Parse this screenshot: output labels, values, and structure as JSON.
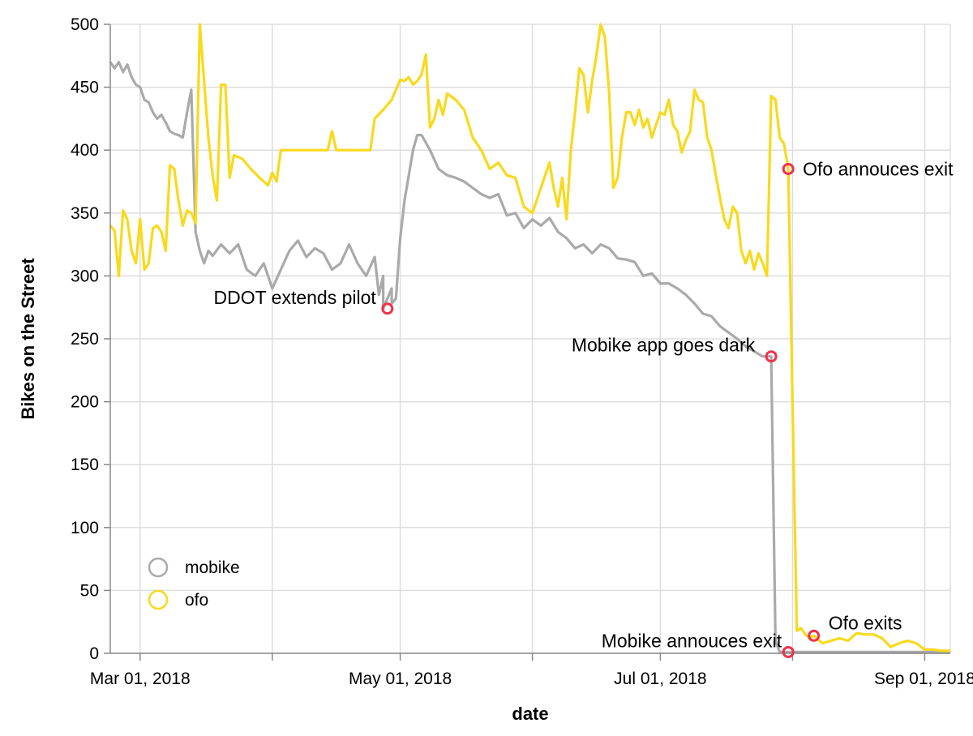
{
  "chart_data": {
    "type": "line",
    "xlabel": "date",
    "ylabel": "Bikes on the Street",
    "xlim": [
      "2018-02-22",
      "2018-09-07"
    ],
    "ylim": [
      0,
      500
    ],
    "yticks": [
      0,
      50,
      100,
      150,
      200,
      250,
      300,
      350,
      400,
      450,
      500
    ],
    "xticks": [
      {
        "date": "2018-03-01",
        "label": "Mar 01, 2018"
      },
      {
        "date": "2018-05-01",
        "label": "May 01, 2018"
      },
      {
        "date": "2018-07-01",
        "label": "Jul 01, 2018"
      },
      {
        "date": "2018-09-01",
        "label": "Sep 01, 2018"
      }
    ],
    "minor_xticks": [
      "2018-04-01",
      "2018-06-01",
      "2018-08-01"
    ],
    "grid": true,
    "legend_position": "bottom-left",
    "series": [
      {
        "name": "mobike",
        "color": "#aaaaaa",
        "points": [
          [
            "2018-02-22",
            470
          ],
          [
            "2018-02-23",
            465
          ],
          [
            "2018-02-24",
            470
          ],
          [
            "2018-02-25",
            462
          ],
          [
            "2018-02-26",
            468
          ],
          [
            "2018-02-27",
            458
          ],
          [
            "2018-02-28",
            452
          ],
          [
            "2018-03-01",
            450
          ],
          [
            "2018-03-02",
            440
          ],
          [
            "2018-03-03",
            438
          ],
          [
            "2018-03-04",
            430
          ],
          [
            "2018-03-05",
            425
          ],
          [
            "2018-03-06",
            428
          ],
          [
            "2018-03-07",
            422
          ],
          [
            "2018-03-08",
            415
          ],
          [
            "2018-03-09",
            413
          ],
          [
            "2018-03-10",
            412
          ],
          [
            "2018-03-11",
            410
          ],
          [
            "2018-03-12",
            430
          ],
          [
            "2018-03-13",
            448
          ],
          [
            "2018-03-14",
            335
          ],
          [
            "2018-03-15",
            320
          ],
          [
            "2018-03-16",
            310
          ],
          [
            "2018-03-17",
            320
          ],
          [
            "2018-03-18",
            316
          ],
          [
            "2018-03-20",
            325
          ],
          [
            "2018-03-22",
            318
          ],
          [
            "2018-03-24",
            325
          ],
          [
            "2018-03-26",
            305
          ],
          [
            "2018-03-28",
            300
          ],
          [
            "2018-03-30",
            310
          ],
          [
            "2018-04-01",
            290
          ],
          [
            "2018-04-03",
            305
          ],
          [
            "2018-04-05",
            320
          ],
          [
            "2018-04-07",
            328
          ],
          [
            "2018-04-09",
            315
          ],
          [
            "2018-04-11",
            322
          ],
          [
            "2018-04-13",
            318
          ],
          [
            "2018-04-15",
            305
          ],
          [
            "2018-04-17",
            310
          ],
          [
            "2018-04-19",
            325
          ],
          [
            "2018-04-21",
            310
          ],
          [
            "2018-04-23",
            300
          ],
          [
            "2018-04-25",
            315
          ],
          [
            "2018-04-27",
            300
          ],
          [
            "2018-04-29",
            290
          ],
          [
            "2018-04-26",
            285
          ],
          [
            "2018-04-27",
            274
          ],
          [
            "2018-04-29",
            278
          ],
          [
            "2018-04-30",
            282
          ],
          [
            "2018-05-01",
            330
          ],
          [
            "2018-05-02",
            360
          ],
          [
            "2018-05-04",
            400
          ],
          [
            "2018-05-05",
            412
          ],
          [
            "2018-05-06",
            412
          ],
          [
            "2018-05-08",
            400
          ],
          [
            "2018-05-10",
            385
          ],
          [
            "2018-05-12",
            380
          ],
          [
            "2018-05-14",
            378
          ],
          [
            "2018-05-16",
            375
          ],
          [
            "2018-05-18",
            370
          ],
          [
            "2018-05-20",
            365
          ],
          [
            "2018-05-22",
            362
          ],
          [
            "2018-05-24",
            365
          ],
          [
            "2018-05-26",
            348
          ],
          [
            "2018-05-28",
            350
          ],
          [
            "2018-05-30",
            338
          ],
          [
            "2018-06-01",
            345
          ],
          [
            "2018-06-03",
            340
          ],
          [
            "2018-06-05",
            346
          ],
          [
            "2018-06-07",
            335
          ],
          [
            "2018-06-09",
            330
          ],
          [
            "2018-06-11",
            322
          ],
          [
            "2018-06-13",
            325
          ],
          [
            "2018-06-15",
            318
          ],
          [
            "2018-06-17",
            325
          ],
          [
            "2018-06-19",
            322
          ],
          [
            "2018-06-21",
            314
          ],
          [
            "2018-06-23",
            313
          ],
          [
            "2018-06-25",
            311
          ],
          [
            "2018-06-27",
            300
          ],
          [
            "2018-06-29",
            302
          ],
          [
            "2018-07-01",
            294
          ],
          [
            "2018-07-03",
            294
          ],
          [
            "2018-07-05",
            290
          ],
          [
            "2018-07-07",
            285
          ],
          [
            "2018-07-09",
            278
          ],
          [
            "2018-07-11",
            270
          ],
          [
            "2018-07-13",
            268
          ],
          [
            "2018-07-15",
            260
          ],
          [
            "2018-07-17",
            255
          ],
          [
            "2018-07-19",
            250
          ],
          [
            "2018-07-21",
            244
          ],
          [
            "2018-07-23",
            240
          ],
          [
            "2018-07-25",
            236
          ],
          [
            "2018-07-27",
            236
          ],
          [
            "2018-07-28",
            10
          ],
          [
            "2018-07-29",
            1
          ],
          [
            "2018-09-07",
            1
          ]
        ]
      },
      {
        "name": "ofo",
        "color": "#f9d91c",
        "points": [
          [
            "2018-02-22",
            340
          ],
          [
            "2018-02-23",
            336
          ],
          [
            "2018-02-24",
            300
          ],
          [
            "2018-02-25",
            352
          ],
          [
            "2018-02-26",
            345
          ],
          [
            "2018-02-27",
            320
          ],
          [
            "2018-02-28",
            310
          ],
          [
            "2018-03-01",
            345
          ],
          [
            "2018-03-02",
            305
          ],
          [
            "2018-03-03",
            310
          ],
          [
            "2018-03-04",
            338
          ],
          [
            "2018-03-05",
            340
          ],
          [
            "2018-03-06",
            335
          ],
          [
            "2018-03-07",
            320
          ],
          [
            "2018-03-08",
            388
          ],
          [
            "2018-03-09",
            385
          ],
          [
            "2018-03-10",
            360
          ],
          [
            "2018-03-11",
            340
          ],
          [
            "2018-03-12",
            352
          ],
          [
            "2018-03-13",
            350
          ],
          [
            "2018-03-14",
            342
          ],
          [
            "2018-03-15",
            500
          ],
          [
            "2018-03-16",
            455
          ],
          [
            "2018-03-17",
            410
          ],
          [
            "2018-03-18",
            380
          ],
          [
            "2018-03-19",
            360
          ],
          [
            "2018-03-20",
            452
          ],
          [
            "2018-03-21",
            452
          ],
          [
            "2018-03-22",
            378
          ],
          [
            "2018-03-23",
            396
          ],
          [
            "2018-03-25",
            393
          ],
          [
            "2018-03-27",
            385
          ],
          [
            "2018-03-29",
            378
          ],
          [
            "2018-03-31",
            372
          ],
          [
            "2018-04-01",
            382
          ],
          [
            "2018-04-02",
            375
          ],
          [
            "2018-04-03",
            400
          ],
          [
            "2018-04-05",
            400
          ],
          [
            "2018-04-07",
            400
          ],
          [
            "2018-04-09",
            400
          ],
          [
            "2018-04-11",
            400
          ],
          [
            "2018-04-13",
            400
          ],
          [
            "2018-04-14",
            400
          ],
          [
            "2018-04-15",
            415
          ],
          [
            "2018-04-16",
            400
          ],
          [
            "2018-04-19",
            400
          ],
          [
            "2018-04-22",
            400
          ],
          [
            "2018-04-24",
            400
          ],
          [
            "2018-04-25",
            425
          ],
          [
            "2018-04-27",
            432
          ],
          [
            "2018-04-29",
            440
          ],
          [
            "2018-05-01",
            456
          ],
          [
            "2018-05-02",
            455
          ],
          [
            "2018-05-03",
            458
          ],
          [
            "2018-05-04",
            452
          ],
          [
            "2018-05-05",
            455
          ],
          [
            "2018-05-06",
            460
          ],
          [
            "2018-05-07",
            476
          ],
          [
            "2018-05-08",
            418
          ],
          [
            "2018-05-09",
            425
          ],
          [
            "2018-05-10",
            440
          ],
          [
            "2018-05-11",
            428
          ],
          [
            "2018-05-12",
            445
          ],
          [
            "2018-05-14",
            440
          ],
          [
            "2018-05-16",
            432
          ],
          [
            "2018-05-18",
            410
          ],
          [
            "2018-05-20",
            400
          ],
          [
            "2018-05-22",
            385
          ],
          [
            "2018-05-24",
            390
          ],
          [
            "2018-05-26",
            380
          ],
          [
            "2018-05-28",
            378
          ],
          [
            "2018-05-30",
            355
          ],
          [
            "2018-06-01",
            350
          ],
          [
            "2018-06-03",
            370
          ],
          [
            "2018-06-05",
            390
          ],
          [
            "2018-06-06",
            370
          ],
          [
            "2018-06-07",
            355
          ],
          [
            "2018-06-08",
            378
          ],
          [
            "2018-06-09",
            345
          ],
          [
            "2018-06-10",
            400
          ],
          [
            "2018-06-11",
            430
          ],
          [
            "2018-06-12",
            465
          ],
          [
            "2018-06-13",
            460
          ],
          [
            "2018-06-14",
            430
          ],
          [
            "2018-06-15",
            455
          ],
          [
            "2018-06-16",
            475
          ],
          [
            "2018-06-17",
            500
          ],
          [
            "2018-06-18",
            490
          ],
          [
            "2018-06-19",
            445
          ],
          [
            "2018-06-20",
            370
          ],
          [
            "2018-06-21",
            378
          ],
          [
            "2018-06-22",
            410
          ],
          [
            "2018-06-23",
            430
          ],
          [
            "2018-06-24",
            430
          ],
          [
            "2018-06-25",
            420
          ],
          [
            "2018-06-26",
            432
          ],
          [
            "2018-06-27",
            418
          ],
          [
            "2018-06-28",
            425
          ],
          [
            "2018-06-29",
            410
          ],
          [
            "2018-06-30",
            420
          ],
          [
            "2018-07-01",
            430
          ],
          [
            "2018-07-02",
            428
          ],
          [
            "2018-07-03",
            440
          ],
          [
            "2018-07-04",
            420
          ],
          [
            "2018-07-05",
            415
          ],
          [
            "2018-07-06",
            398
          ],
          [
            "2018-07-07",
            408
          ],
          [
            "2018-07-08",
            415
          ],
          [
            "2018-07-09",
            448
          ],
          [
            "2018-07-10",
            440
          ],
          [
            "2018-07-11",
            438
          ],
          [
            "2018-07-12",
            410
          ],
          [
            "2018-07-13",
            400
          ],
          [
            "2018-07-14",
            380
          ],
          [
            "2018-07-15",
            362
          ],
          [
            "2018-07-16",
            345
          ],
          [
            "2018-07-17",
            338
          ],
          [
            "2018-07-18",
            355
          ],
          [
            "2018-07-19",
            350
          ],
          [
            "2018-07-20",
            320
          ],
          [
            "2018-07-21",
            310
          ],
          [
            "2018-07-22",
            320
          ],
          [
            "2018-07-23",
            305
          ],
          [
            "2018-07-24",
            318
          ],
          [
            "2018-07-25",
            310
          ],
          [
            "2018-07-26",
            300
          ],
          [
            "2018-07-27",
            443
          ],
          [
            "2018-07-28",
            440
          ],
          [
            "2018-07-29",
            410
          ],
          [
            "2018-07-30",
            405
          ],
          [
            "2018-07-31",
            385
          ],
          [
            "2018-08-01",
            200
          ],
          [
            "2018-08-02",
            18
          ],
          [
            "2018-08-03",
            20
          ],
          [
            "2018-08-04",
            15
          ],
          [
            "2018-08-05",
            12
          ],
          [
            "2018-08-06",
            14
          ],
          [
            "2018-08-08",
            8
          ],
          [
            "2018-08-10",
            10
          ],
          [
            "2018-08-12",
            12
          ],
          [
            "2018-08-14",
            10
          ],
          [
            "2018-08-16",
            16
          ],
          [
            "2018-08-18",
            15
          ],
          [
            "2018-08-20",
            15
          ],
          [
            "2018-08-22",
            12
          ],
          [
            "2018-08-24",
            5
          ],
          [
            "2018-08-26",
            8
          ],
          [
            "2018-08-28",
            10
          ],
          [
            "2018-08-30",
            8
          ],
          [
            "2018-09-01",
            3
          ],
          [
            "2018-09-03",
            3
          ],
          [
            "2018-09-05",
            2
          ],
          [
            "2018-09-07",
            2
          ]
        ]
      }
    ],
    "annotations": [
      {
        "label": "DDOT extends pilot",
        "date": "2018-04-28",
        "value": 274,
        "anchor": "end"
      },
      {
        "label": "Ofo annouces exit",
        "date": "2018-07-31",
        "value": 385,
        "anchor": "start"
      },
      {
        "label": "Mobike app goes dark",
        "date": "2018-07-27",
        "value": 236,
        "anchor": "end"
      },
      {
        "label": "Ofo exits",
        "date": "2018-08-06",
        "value": 14,
        "anchor": "start"
      },
      {
        "label": "Mobike annouces exit",
        "date": "2018-07-31",
        "value": 1,
        "anchor": "end"
      }
    ],
    "legend": [
      {
        "label": "mobike",
        "color": "#aaaaaa"
      },
      {
        "label": "ofo",
        "color": "#f9d91c"
      }
    ]
  }
}
